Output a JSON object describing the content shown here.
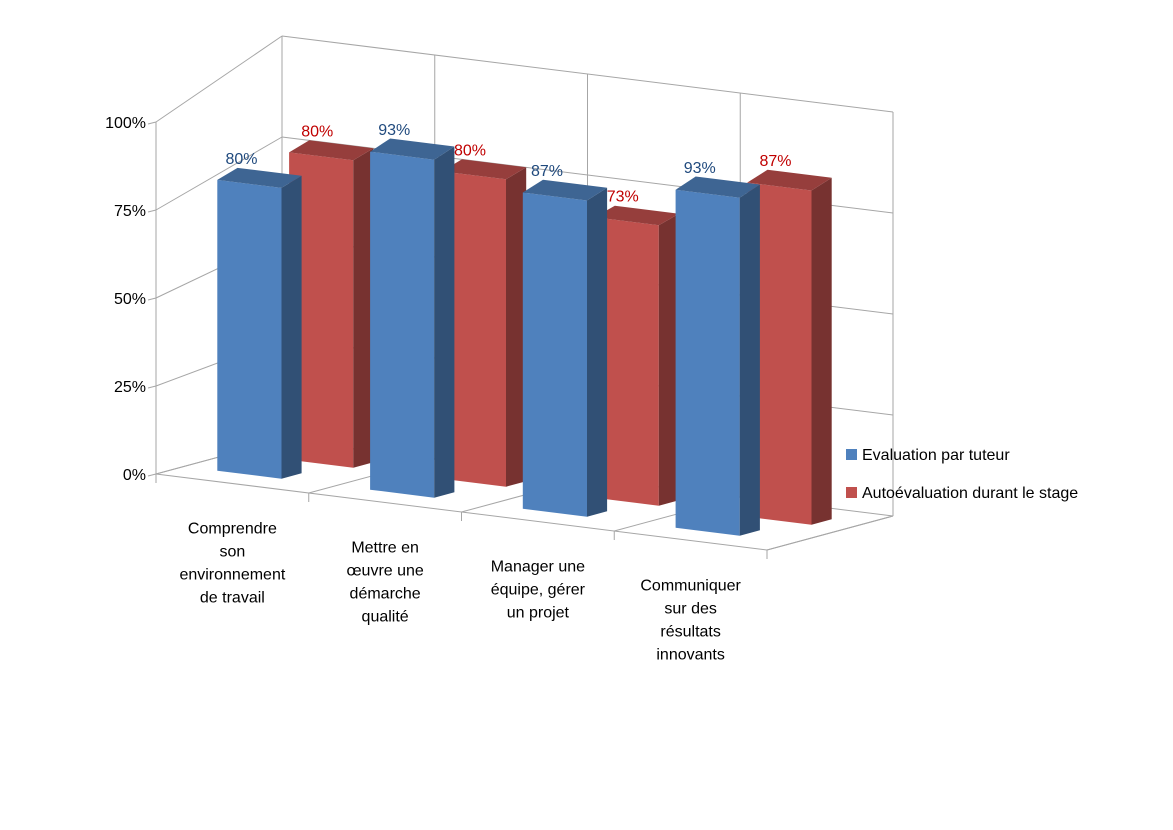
{
  "chart_data": {
    "type": "bar",
    "style": "3d-clustered-column",
    "title": "",
    "xlabel": "",
    "ylabel": "",
    "ylim": [
      0,
      100
    ],
    "yticks": [
      "0%",
      "25%",
      "50%",
      "75%",
      "100%"
    ],
    "grid": true,
    "legend_position": "right",
    "categories": [
      [
        "Comprendre",
        "son",
        "environnement",
        "de travail"
      ],
      [
        "Mettre en",
        "œuvre une",
        "démarche",
        "qualité"
      ],
      [
        "Manager une",
        "équipe, gérer",
        "un projet"
      ],
      [
        "Communiquer",
        "sur des",
        "résultats",
        "innovants"
      ]
    ],
    "series": [
      {
        "name": "Evaluation par tuteur",
        "color": "#4F81BD",
        "label_color": "#1F497D",
        "values": [
          80,
          93,
          87,
          93
        ],
        "labels": [
          "80%",
          "93%",
          "87%",
          "93%"
        ]
      },
      {
        "name": "Autoévaluation durant le stage",
        "color": "#C0504D",
        "label_color": "#C00000",
        "values": [
          80,
          80,
          73,
          87
        ],
        "labels": [
          "80%",
          "80%",
          "73%",
          "87%"
        ]
      }
    ]
  }
}
